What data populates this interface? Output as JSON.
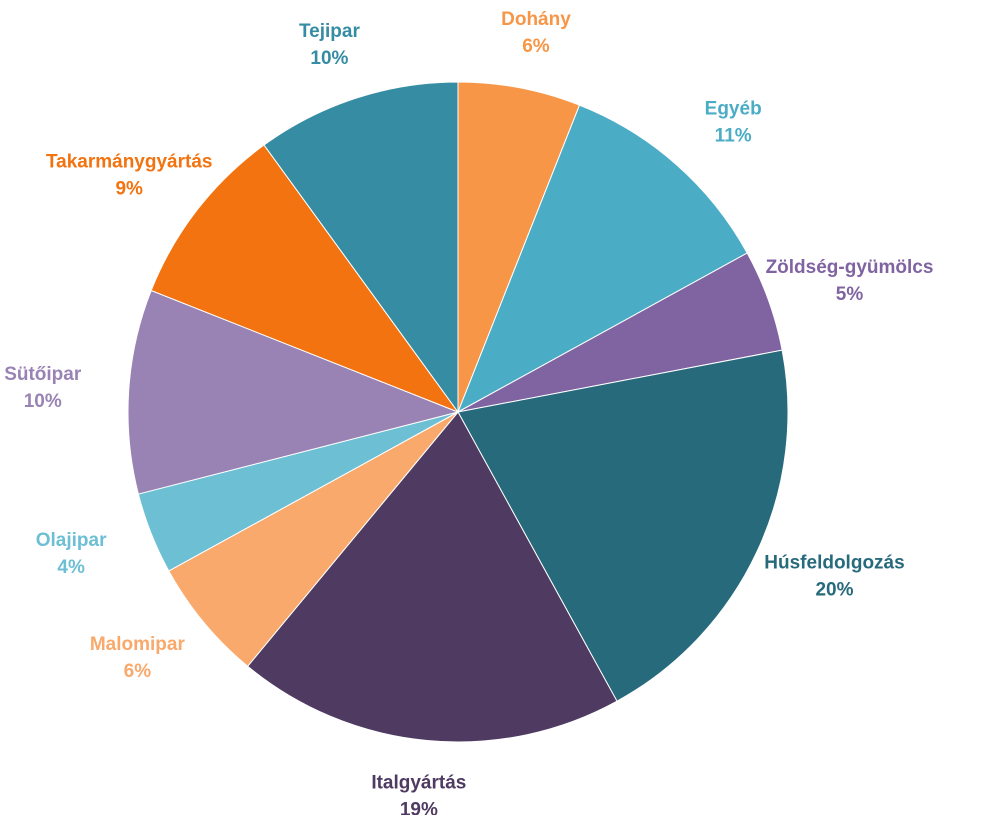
{
  "chart_data": {
    "type": "pie",
    "categories": [
      "Dohány",
      "Egyéb",
      "Zöldség-gyümölcs",
      "Húsfeldolgozás",
      "Italgyártás",
      "Malomipar",
      "Olajipar",
      "Sütőipar",
      "Takarmánygyártás",
      "Tejipar"
    ],
    "values": [
      6,
      11,
      5,
      20,
      19,
      6,
      4,
      10,
      9,
      10
    ],
    "value_labels": [
      "6%",
      "11%",
      "5%",
      "20%",
      "19%",
      "6%",
      "4%",
      "10%",
      "9%",
      "10%"
    ],
    "colors": [
      "#f79646",
      "#4bacc6",
      "#8064a2",
      "#276a7c",
      "#4f3a62",
      "#f9a96b",
      "#6dbfd4",
      "#9983b5",
      "#f2730f",
      "#358ca3"
    ]
  }
}
